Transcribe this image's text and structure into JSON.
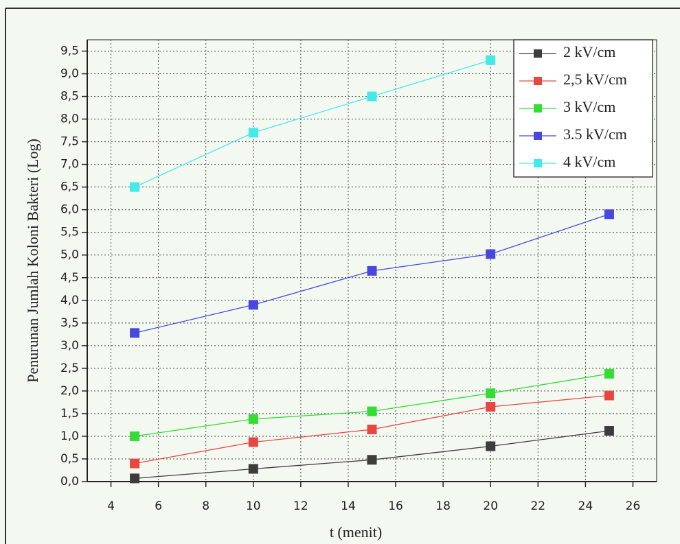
{
  "chart_data": {
    "type": "line",
    "xlabel": "t (menit)",
    "ylabel": "Penurunan Jumlah Koloni Bakteri (Log)",
    "x": [
      5,
      10,
      15,
      20,
      25
    ],
    "series": [
      {
        "name": "2 kV/cm",
        "color": "#3c3c3c",
        "values": [
          0.07,
          0.28,
          0.48,
          0.78,
          1.12
        ]
      },
      {
        "name": "2,5 kV/cm",
        "color": "#e8473f",
        "values": [
          0.4,
          0.87,
          1.15,
          1.65,
          1.9
        ]
      },
      {
        "name": "3 kV/cm",
        "color": "#33dd33",
        "values": [
          1.0,
          1.38,
          1.55,
          1.95,
          2.38
        ]
      },
      {
        "name": "3.5 kV/cm",
        "color": "#4848e0",
        "values": [
          3.28,
          3.9,
          4.65,
          5.02,
          5.9
        ]
      },
      {
        "name": "4 kV/cm",
        "color": "#44eaea",
        "values": [
          6.5,
          7.7,
          8.5,
          9.3,
          null
        ]
      }
    ],
    "xlim": [
      3,
      27
    ],
    "xticks": [
      4,
      6,
      8,
      10,
      12,
      14,
      16,
      18,
      20,
      22,
      24,
      26
    ],
    "ylim": [
      0,
      9.75
    ],
    "yticks": [
      {
        "value": 0,
        "label": "0,0"
      },
      {
        "value": 0.5,
        "label": "0,5"
      },
      {
        "value": 1,
        "label": "1,0"
      },
      {
        "value": 1.5,
        "label": "1,5"
      },
      {
        "value": 2,
        "label": "2,0"
      },
      {
        "value": 2.5,
        "label": "2,5"
      },
      {
        "value": 3,
        "label": "3,0"
      },
      {
        "value": 3.5,
        "label": "3,5"
      },
      {
        "value": 4,
        "label": "4,0"
      },
      {
        "value": 4.5,
        "label": "4,5"
      },
      {
        "value": 5,
        "label": "5,0"
      },
      {
        "value": 5.5,
        "label": "5,5"
      },
      {
        "value": 6,
        "label": "6,0"
      },
      {
        "value": 6.5,
        "label": "6,5"
      },
      {
        "value": 7,
        "label": "7,0"
      },
      {
        "value": 7.5,
        "label": "7,5"
      },
      {
        "value": 8,
        "label": "8,0"
      },
      {
        "value": 8.5,
        "label": "8,5"
      },
      {
        "value": 9,
        "label": "9,0"
      },
      {
        "value": 9.5,
        "label": "9,5"
      }
    ],
    "grid": true,
    "legend": "upper right"
  }
}
